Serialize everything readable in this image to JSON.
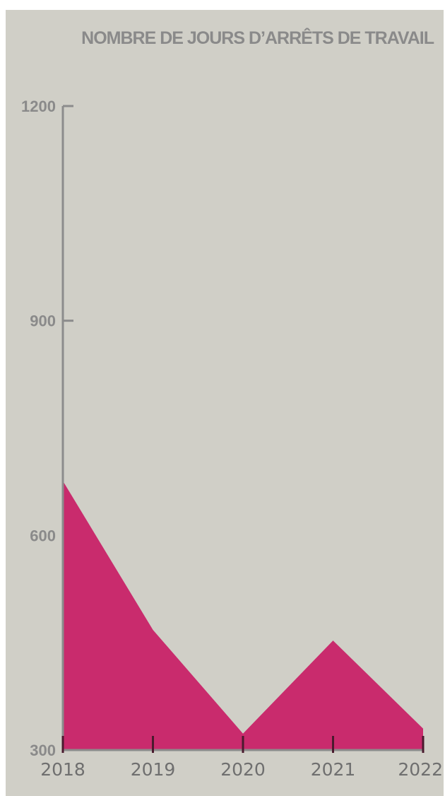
{
  "chart_data": {
    "type": "area",
    "title": "NOMBRE DE JOURS D’ARRÊTS DE TRAVAIL",
    "xlabel": "",
    "ylabel": "",
    "categories": [
      "2018",
      "2019",
      "2020",
      "2021",
      "2022"
    ],
    "values": [
      676,
      468,
      323,
      453,
      330
    ],
    "yticks": [
      300,
      600,
      900,
      1200
    ],
    "ylim": [
      300,
      1200
    ],
    "grid": false,
    "legend": "none",
    "colors": {
      "fill": "#c92b6d",
      "axis": "#8c8c8c",
      "tick_dark": "#4a1a2e",
      "background": "#d0cfc7"
    }
  }
}
